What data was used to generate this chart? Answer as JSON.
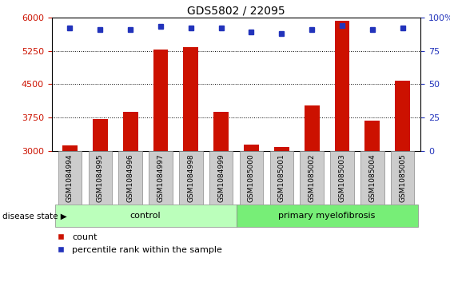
{
  "title": "GDS5802 / 22095",
  "samples": [
    "GSM1084994",
    "GSM1084995",
    "GSM1084996",
    "GSM1084997",
    "GSM1084998",
    "GSM1084999",
    "GSM1085000",
    "GSM1085001",
    "GSM1085002",
    "GSM1085003",
    "GSM1085004",
    "GSM1085005"
  ],
  "counts": [
    3130,
    3720,
    3880,
    5270,
    5340,
    3870,
    3140,
    3080,
    4020,
    5920,
    3680,
    4570
  ],
  "percentiles": [
    92,
    91,
    91,
    93,
    92,
    92,
    89,
    88,
    91,
    94,
    91,
    92
  ],
  "groups": {
    "control": [
      0,
      1,
      2,
      3,
      4,
      5
    ],
    "primary myelofibrosis": [
      6,
      7,
      8,
      9,
      10,
      11
    ]
  },
  "ylim_left": [
    3000,
    6000
  ],
  "ylim_right": [
    0,
    100
  ],
  "yticks_left": [
    3000,
    3750,
    4500,
    5250,
    6000
  ],
  "yticks_right": [
    0,
    25,
    50,
    75,
    100
  ],
  "bar_color": "#CC1100",
  "dot_color": "#2233BB",
  "control_color": "#BBFFBB",
  "pmf_color": "#77EE77",
  "tick_bg_color": "#CCCCCC",
  "left_axis_color": "#CC1100",
  "right_axis_color": "#2233BB",
  "legend_count_label": "count",
  "legend_percentile_label": "percentile rank within the sample",
  "disease_state_label": "disease state",
  "control_label": "control",
  "pmf_label": "primary myelofibrosis"
}
